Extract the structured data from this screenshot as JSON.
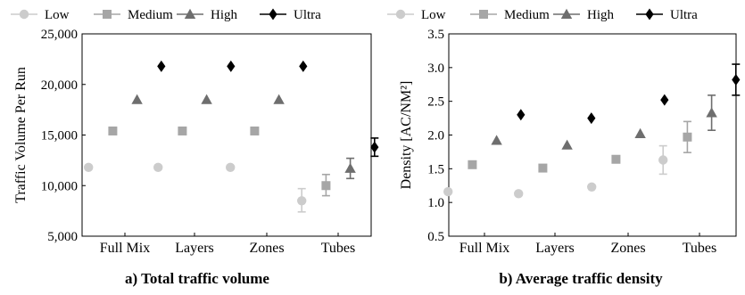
{
  "figure": {
    "legend_markers": {
      "Low": "circle",
      "Medium": "square",
      "High": "triangle",
      "Ultra": "diamond"
    }
  },
  "chart_data": [
    {
      "type": "scatter",
      "caption": "a) Total traffic volume",
      "title": "",
      "xlabel": "",
      "ylabel": "Traffic Volume Per Run",
      "categories": [
        "Full Mix",
        "Layers",
        "Zones",
        "Tubes"
      ],
      "ylim": [
        5000,
        25000
      ],
      "yticks": [
        5000,
        10000,
        15000,
        20000,
        25000
      ],
      "ytick_labels": [
        "5,000",
        "10,000",
        "15,000",
        "20,000",
        "25,000"
      ],
      "legend_position": "top",
      "series": [
        {
          "name": "Low",
          "color": "#cccccc",
          "marker": "circle",
          "values": [
            11800,
            11800,
            11800,
            8500
          ],
          "errors": [
            null,
            null,
            null,
            [
              7400,
              9700
            ]
          ]
        },
        {
          "name": "Medium",
          "color": "#a6a6a6",
          "marker": "square",
          "values": [
            15400,
            15400,
            15400,
            10000
          ],
          "errors": [
            null,
            null,
            null,
            [
              9000,
              11100
            ]
          ]
        },
        {
          "name": "High",
          "color": "#6e6e6e",
          "marker": "triangle",
          "values": [
            18500,
            18500,
            18500,
            11700
          ],
          "errors": [
            null,
            null,
            null,
            [
              10700,
              12700
            ]
          ]
        },
        {
          "name": "Ultra",
          "color": "#000000",
          "marker": "diamond",
          "values": [
            21800,
            21800,
            21800,
            13800
          ],
          "errors": [
            null,
            null,
            null,
            [
              12900,
              14700
            ]
          ]
        }
      ]
    },
    {
      "type": "scatter",
      "caption": "b) Average traffic density",
      "title": "",
      "xlabel": "",
      "ylabel": "Density [AC/NM²]",
      "categories": [
        "Full Mix",
        "Layers",
        "Zones",
        "Tubes"
      ],
      "ylim": [
        0.5,
        3.5
      ],
      "yticks": [
        0.5,
        1.0,
        1.5,
        2.0,
        2.5,
        3.0,
        3.5
      ],
      "ytick_labels": [
        "0.5",
        "1.0",
        "1.5",
        "2.0",
        "2.5",
        "3.0",
        "3.5"
      ],
      "legend_position": "top",
      "series": [
        {
          "name": "Low",
          "color": "#cccccc",
          "marker": "circle",
          "values": [
            1.16,
            1.13,
            1.23,
            1.63
          ],
          "errors": [
            null,
            null,
            null,
            [
              1.42,
              1.84
            ]
          ]
        },
        {
          "name": "Medium",
          "color": "#a6a6a6",
          "marker": "square",
          "values": [
            1.56,
            1.51,
            1.64,
            1.97
          ],
          "errors": [
            null,
            null,
            null,
            [
              1.74,
              2.2
            ]
          ]
        },
        {
          "name": "High",
          "color": "#6e6e6e",
          "marker": "triangle",
          "values": [
            1.92,
            1.85,
            2.02,
            2.33
          ],
          "errors": [
            null,
            null,
            null,
            [
              2.07,
              2.59
            ]
          ]
        },
        {
          "name": "Ultra",
          "color": "#000000",
          "marker": "diamond",
          "values": [
            2.3,
            2.25,
            2.52,
            2.82
          ],
          "errors": [
            null,
            null,
            null,
            [
              2.59,
              3.05
            ]
          ]
        }
      ]
    }
  ]
}
